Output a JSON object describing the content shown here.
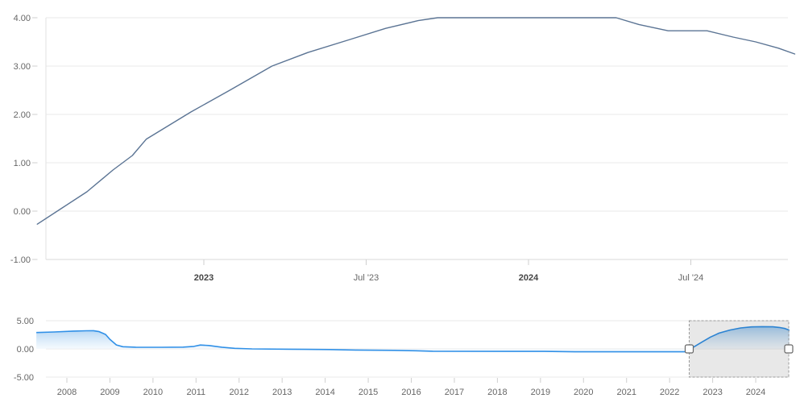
{
  "chart_data": [
    {
      "id": "main-price-chart",
      "type": "line",
      "title": "",
      "xlabel": "",
      "ylabel": "",
      "legend": "none",
      "grid": "horizontal",
      "line_color": "#5b7494",
      "ylim": [
        -1.1,
        4.1
      ],
      "yticks": [
        {
          "label": "4.00",
          "v": 4
        },
        {
          "label": "3.00",
          "v": 3
        },
        {
          "label": "2.00",
          "v": 2
        },
        {
          "label": "1.00",
          "v": 1
        },
        {
          "label": "0.00",
          "v": 0
        },
        {
          "label": "-1.00",
          "v": -1
        }
      ],
      "xticks": [
        {
          "label": "2023",
          "t": 2023.0,
          "bold": true
        },
        {
          "label": "Jul '23",
          "t": 2023.5,
          "bold": false
        },
        {
          "label": "2024",
          "t": 2024.0,
          "bold": true
        },
        {
          "label": "Jul '24",
          "t": 2024.5,
          "bold": false
        }
      ],
      "leading_gridline_t": 2022.5,
      "points": [
        [
          2022.487,
          -0.27
        ],
        [
          2022.56,
          0.05
        ],
        [
          2022.64,
          0.4
        ],
        [
          2022.72,
          0.85
        ],
        [
          2022.78,
          1.15
        ],
        [
          2022.823,
          1.49
        ],
        [
          2022.96,
          2.05
        ],
        [
          2023.08,
          2.5
        ],
        [
          2023.21,
          3.0
        ],
        [
          2023.32,
          3.28
        ],
        [
          2023.45,
          3.55
        ],
        [
          2023.56,
          3.78
        ],
        [
          2023.66,
          3.94
        ],
        [
          2023.72,
          4.0
        ],
        [
          2024.27,
          4.0
        ],
        [
          2024.34,
          3.86
        ],
        [
          2024.43,
          3.73
        ],
        [
          2024.55,
          3.73
        ],
        [
          2024.63,
          3.6
        ],
        [
          2024.7,
          3.5
        ],
        [
          2024.77,
          3.37
        ],
        [
          2024.82,
          3.25
        ]
      ]
    },
    {
      "id": "navigator-chart",
      "type": "area",
      "title": "",
      "legend": "none",
      "line_color": "#3090e7",
      "fill_top_color": "#85bcec",
      "fill_bottom_color": "#eef6fd",
      "ylim": [
        -5.2,
        5.2
      ],
      "yticks": [
        {
          "label": "5.00",
          "v": 5
        },
        {
          "label": "0.00",
          "v": 0
        },
        {
          "label": "-5.00",
          "v": -5
        }
      ],
      "xticks": [
        {
          "label": "2008",
          "t": 2008
        },
        {
          "label": "2009",
          "t": 2009
        },
        {
          "label": "2010",
          "t": 2010
        },
        {
          "label": "2011",
          "t": 2011
        },
        {
          "label": "2012",
          "t": 2012
        },
        {
          "label": "2013",
          "t": 2013
        },
        {
          "label": "2014",
          "t": 2014
        },
        {
          "label": "2015",
          "t": 2015
        },
        {
          "label": "2016",
          "t": 2016
        },
        {
          "label": "2017",
          "t": 2017
        },
        {
          "label": "2018",
          "t": 2018
        },
        {
          "label": "2019",
          "t": 2019
        },
        {
          "label": "2020",
          "t": 2020
        },
        {
          "label": "2021",
          "t": 2021
        },
        {
          "label": "2022",
          "t": 2022
        },
        {
          "label": "2023",
          "t": 2023
        },
        {
          "label": "2024",
          "t": 2024
        }
      ],
      "selection": {
        "from_t": 2022.455,
        "to_t": 2024.785
      },
      "selection_fill": "rgba(0,0,0,0.09)",
      "selection_border": "#9b9b9b",
      "points": [
        [
          2007.29,
          2.9
        ],
        [
          2007.7,
          3.0
        ],
        [
          2008.15,
          3.15
        ],
        [
          2008.45,
          3.22
        ],
        [
          2008.62,
          3.23
        ],
        [
          2008.75,
          3.05
        ],
        [
          2008.9,
          2.55
        ],
        [
          2009.0,
          1.7
        ],
        [
          2009.15,
          0.7
        ],
        [
          2009.3,
          0.38
        ],
        [
          2009.6,
          0.3
        ],
        [
          2010.2,
          0.28
        ],
        [
          2010.7,
          0.32
        ],
        [
          2010.95,
          0.45
        ],
        [
          2011.1,
          0.68
        ],
        [
          2011.3,
          0.6
        ],
        [
          2011.6,
          0.3
        ],
        [
          2011.9,
          0.1
        ],
        [
          2012.3,
          0.0
        ],
        [
          2013.2,
          -0.05
        ],
        [
          2014.1,
          -0.12
        ],
        [
          2014.7,
          -0.2
        ],
        [
          2015.6,
          -0.25
        ],
        [
          2016.1,
          -0.33
        ],
        [
          2016.5,
          -0.42
        ],
        [
          2019.1,
          -0.44
        ],
        [
          2019.8,
          -0.52
        ],
        [
          2022.4,
          -0.52
        ],
        [
          2022.55,
          0.3
        ],
        [
          2022.75,
          1.2
        ],
        [
          2022.95,
          2.1
        ],
        [
          2023.15,
          2.8
        ],
        [
          2023.4,
          3.35
        ],
        [
          2023.65,
          3.72
        ],
        [
          2023.9,
          3.9
        ],
        [
          2024.15,
          3.95
        ],
        [
          2024.4,
          3.92
        ],
        [
          2024.55,
          3.8
        ],
        [
          2024.68,
          3.62
        ],
        [
          2024.785,
          3.3
        ]
      ]
    }
  ],
  "colors": {
    "gridline": "#e9e9e9",
    "axis_line": "#d9d9d9",
    "tick_mark": "#cfcfcf",
    "label": "#666666",
    "label_bold": "#454545",
    "handle_fill": "#ffffff",
    "handle_border": "#666666"
  }
}
